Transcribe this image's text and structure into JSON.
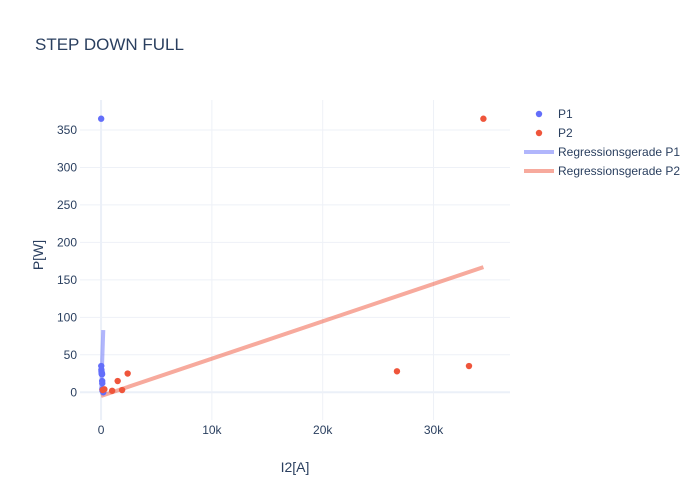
{
  "chart_data": {
    "type": "scatter",
    "title": "STEP DOWN FULL",
    "xlabel": "I2[A]",
    "ylabel": "P[W]",
    "xlim": [
      -1900,
      36900
    ],
    "ylim": [
      -37,
      390
    ],
    "x_ticks": [
      {
        "value": 0,
        "label": "0"
      },
      {
        "value": 10000,
        "label": "10k"
      },
      {
        "value": 20000,
        "label": "20k"
      },
      {
        "value": 30000,
        "label": "30k"
      }
    ],
    "y_ticks": [
      {
        "value": 0,
        "label": "0"
      },
      {
        "value": 50,
        "label": "50"
      },
      {
        "value": 100,
        "label": "100"
      },
      {
        "value": 150,
        "label": "150"
      },
      {
        "value": 200,
        "label": "200"
      },
      {
        "value": 250,
        "label": "250"
      },
      {
        "value": 300,
        "label": "300"
      },
      {
        "value": 350,
        "label": "350"
      }
    ],
    "grid": true,
    "legend_position": "top-right",
    "series": [
      {
        "name": "P1",
        "kind": "markers",
        "color": "#636efa",
        "x": [
          10,
          20,
          30,
          40,
          50,
          60,
          70,
          80,
          90,
          100,
          110,
          120,
          140,
          160,
          180,
          200
        ],
        "y": [
          365,
          35,
          30,
          28,
          26,
          25,
          24,
          25,
          24,
          15,
          12,
          4,
          3,
          2,
          1,
          0
        ]
      },
      {
        "name": "P2",
        "kind": "markers",
        "color": "#ef553b",
        "x": [
          34500,
          33200,
          26700,
          2400,
          1500,
          1900,
          1000,
          300,
          150
        ],
        "y": [
          365,
          35,
          28,
          25,
          15,
          3,
          2,
          4,
          3
        ]
      },
      {
        "name": "Regressionsgerade P1",
        "kind": "line",
        "color": "#636efa",
        "x": [
          5,
          200
        ],
        "y": [
          0,
          83
        ]
      },
      {
        "name": "Regressionsgerade P2",
        "kind": "line",
        "color": "#ef553b",
        "x": [
          0,
          34500
        ],
        "y": [
          -5,
          167
        ]
      }
    ]
  }
}
